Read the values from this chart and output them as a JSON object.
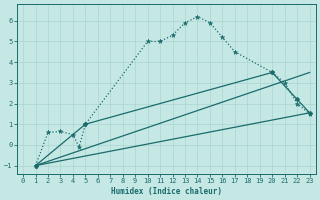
{
  "xlabel": "Humidex (Indice chaleur)",
  "xlim": [
    -0.5,
    23.5
  ],
  "ylim": [
    -1.4,
    6.8
  ],
  "xticks": [
    0,
    1,
    2,
    3,
    4,
    5,
    6,
    7,
    8,
    9,
    10,
    11,
    12,
    13,
    14,
    15,
    16,
    17,
    18,
    19,
    20,
    21,
    22,
    23
  ],
  "yticks": [
    -1,
    0,
    1,
    2,
    3,
    4,
    5,
    6
  ],
  "bg_color": "#c5e8e5",
  "line_color": "#1a6b6b",
  "grid_color": "#aad4d0",
  "dotted_line": {
    "x": [
      1,
      2,
      3,
      4,
      4.5,
      5,
      10,
      11,
      12,
      13,
      14,
      15,
      16,
      17,
      20,
      21,
      22,
      23
    ],
    "y": [
      -1,
      0.6,
      0.65,
      0.5,
      -0.1,
      1.0,
      5.0,
      5.0,
      5.3,
      5.9,
      6.2,
      5.9,
      5.2,
      4.5,
      3.5,
      3.0,
      2.0,
      1.5
    ]
  },
  "line_bottom": {
    "x": [
      1,
      23
    ],
    "y": [
      -1,
      1.55
    ]
  },
  "line_top": {
    "x": [
      1,
      23
    ],
    "y": [
      -1,
      3.5
    ]
  },
  "line_mid": {
    "x": [
      1,
      5,
      20,
      22,
      23
    ],
    "y": [
      -1,
      1.0,
      3.5,
      2.2,
      1.55
    ]
  }
}
